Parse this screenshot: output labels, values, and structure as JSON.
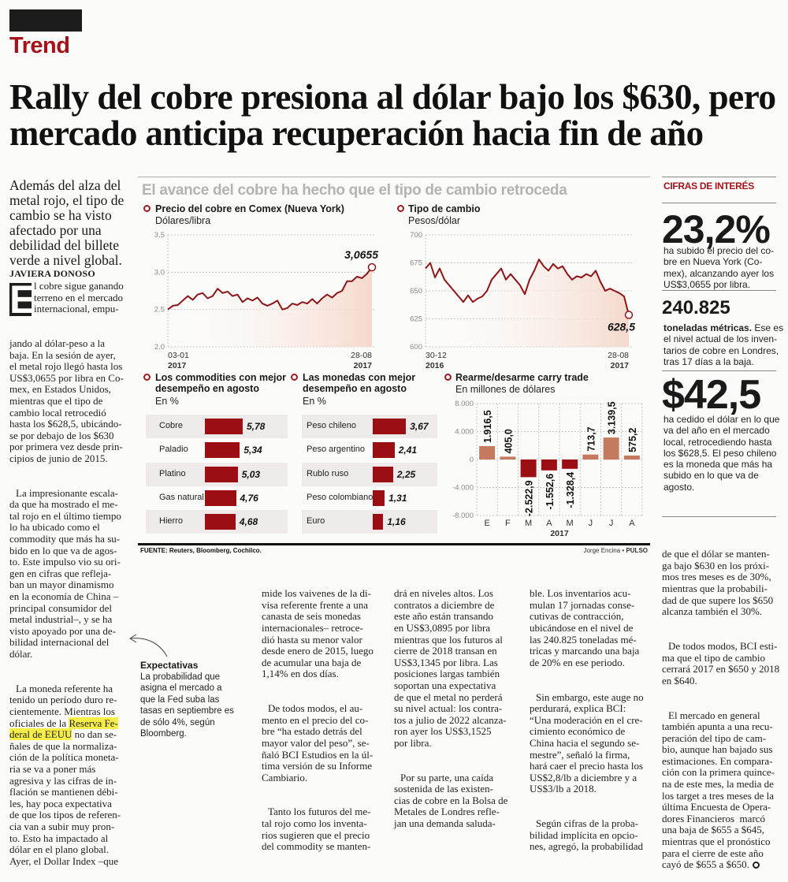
{
  "section": "Trend",
  "headline": [
    "Rally del cobre presiona al dólar bajo los $630, pero",
    "mercado anticipa recuperación hacia fin de año"
  ],
  "deck": "Además del alza del\nmetal rojo, el tipo de\ncambio se ha visto\nafectado por una\ndebilidad del billete\nverde a nivel global.",
  "byline": "JAVIERA DONOSO",
  "article": {
    "dropcap": "E",
    "dropcap_lines": "l cobre sigue ganando\nterreno en el mercado\ninternacional, empu-",
    "p1_rest": "jando al dólar-peso a la\nbaja. En la sesión de ayer,\nel metal rojo llegó hasta los\nUS$3,0655 por libra en Co-\nmex, en Estados Unidos,\nmientras que el tipo de\ncambio local retrocedió\nhasta los $628,5, ubicándo-\nse por debajo de los $630\npor primera vez desde prin-\ncipios de junio de 2015.",
    "p2": "La impresionante escala-\nda que ha mostrado el me-\ntal rojo en el último tiempo\nlo ha ubicado como el\ncommodity que más ha su-\nbido en lo que va de agos-\nto. Este impulso vio su ori-\ngen en cifras que refleja-\nban un mayor dinamismo\nen la economía de China –\nprincipal consumidor del\nmetal industrial–, y se ha\nvisto apoyado por una de-\nbilidad internacional del\ndólar.",
    "p3_a": "La moneda referente ha\ntenido un período duro re-\ncientemente. Mientras los\noficiales de la ",
    "p3_highlight": "Reserva Fe-\nderal de EEUU",
    "p3_b": " no dan se-\nñales de que la normaliza-\nción de la política moneta-\nria se va a poner más\nagresiva y las cifras de in-\nflación se mantienen débi-\nles, hay poca expectativa\nde que los tipos de referen-\ncia van a subir muy pron-\nto. Esto ha impactado al\ndólar en el plano global.\nAyer, el Dollar Index –que",
    "col2_p1": "mide los vaivenes de la di-\nvisa referente frente a una\ncanasta de seis monedas\ninternacionales– retroce-\ndió hasta su menor valor\ndesde enero de 2015, luego\nde acumular una baja de\n1,14% en dos días.",
    "col2_p2": "De todos modos, el au-\nmento en el precio del co-\nbre “ha estado detrás del\nmayor valor del peso”, se-\nñaló BCI Estudios en la úl-\ntima versión de su Informe\nCambiario.",
    "col2_p3": "Tanto los futuros del me-\ntal rojo como los inventa-\nrios sugieren que el precio\ndel commodity se manten-",
    "col3_p1": "drá en niveles altos. Los\ncontratos a diciembre de\neste año están transando\nen US$3,0895 por libra\nmientras que los futuros al\ncierre de 2018 transan en\nUS$3,1345 por libra. Las\nposiciones largas también\nsoportan una expectativa\nde que el metal no perderá\nsu nivel actual: los contra-\ntos a julio de 2022 alcanza-\nron ayer los US$3,1525\npor libra.",
    "col3_p2": "Por su parte, una caída\nsostenida de las existen-\ncias de cobre en la Bolsa de\nMetales de Londres refle-\njan una demanda saluda-",
    "col4_p1": "ble. Los inventarios acu-\nmulan 17 jornadas conse-\ncutivas de contracción,\nubicándose en el nivel de\nlas 240.825 toneladas mé-\ntricas y marcando una baja\nde 20% en ese periodo.",
    "col4_p2": "Sin embargo, este auge no\nperdurará, explica BCI:\n“Una moderación en el cre-\ncimiento económico de\nChina hacia el segundo se-\nmestre”, señaló la firma,\nhará caer el precio hasta los\nUS$2,8/lb a diciembre y a\nUS$3/lb a 2018.",
    "col4_p3": "Según cifras de la proba-\nbilidad implícita en opcio-\nnes, agregó, la probabilidad",
    "col5_p1": "de que el dólar se manten-\nga bajo $630 en los próxi-\nmos tres meses es de 30%,\nmientras que la probabili-\ndad de que supere los $650\nalcanza también el 30%.",
    "col5_p2": "De todos modos, BCI esti-\nma que el tipo de cambio\ncerrará 2017 en $650 y 2018\nen $640.",
    "col5_p3": "El mercado en general\ntambién apunta a una recu-\nperación del tipo de cam-\nbio, aunque han bajado sus\nestimaciones. En compara-\nción con la primera quince-\nna de este mes, la media de\nlos target a tres meses de la\núltima Encuesta de Opera-\ndores Financieros  marcó\nuna baja de $655 a $645,\nmientras que el pronóstico\npara el cierre de este año\ncayó de $655 a $650."
  },
  "annotation": {
    "title": "Expectativas",
    "text": "La probabilidad que\nasigna el mercado a\nque la Fed suba las\ntasas en septiembre es\nde sólo 4%, según\nBloomberg."
  },
  "sidebar": {
    "title": "CIFRAS DE INTERÉS",
    "stats": [
      {
        "value": "23,2%",
        "text": "ha subido el precio del co-\nbre en Nueva York (Co-\nmex), alcanzando ayer los\nUS$3,0655 por libra."
      },
      {
        "value": "240.825",
        "bold_text": "toneladas métricas.",
        "text": " Ese es\nel nivel actual de los inven-\ntarios de cobre en Londres,\ntras 17 días a la baja."
      },
      {
        "value": "$42,5",
        "text": "ha cedido el dólar en lo que\nva del año en el mercado\nlocal, retrocediendo hasta\nlos $628,5. El peso chileno\nes la moneda que más ha\nsubido en lo que va de\nagosto."
      }
    ]
  },
  "graphic": {
    "title": "El avance del cobre ha hecho que el tipo de cambio retroceda",
    "source": "FUENTE: Reuters, Bloomberg, Cochilco.",
    "credit_author": "Jorge Encina",
    "credit_sep": " • ",
    "credit_outlet": "PULSO",
    "accent": "#9b0f14",
    "positive_color": "#c47a5f"
  },
  "chart_data": [
    {
      "type": "line",
      "title": "Precio del cobre en Comex (Nueva York)",
      "ylabel": "Dólares/libra",
      "ylim": [
        2.0,
        3.5
      ],
      "yticks": [
        "3.5",
        "3.0",
        "2.5",
        "2.0"
      ],
      "x_start": {
        "date": "03-01",
        "year": "2017"
      },
      "x_end": {
        "date": "28-08",
        "year": "2017"
      },
      "last_label": "3,0655",
      "values": [
        2.5,
        2.55,
        2.56,
        2.62,
        2.68,
        2.63,
        2.7,
        2.72,
        2.65,
        2.68,
        2.78,
        2.72,
        2.74,
        2.68,
        2.7,
        2.6,
        2.65,
        2.62,
        2.66,
        2.58,
        2.55,
        2.58,
        2.62,
        2.5,
        2.52,
        2.58,
        2.56,
        2.6,
        2.58,
        2.64,
        2.58,
        2.65,
        2.7,
        2.66,
        2.72,
        2.75,
        2.88,
        2.88,
        2.94,
        2.92,
        2.98,
        3.0655
      ]
    },
    {
      "type": "line",
      "title": "Tipo de cambio",
      "ylabel": "Pesos/dólar",
      "ylim": [
        600,
        700
      ],
      "yticks": [
        "700",
        "675",
        "650",
        "625",
        "600"
      ],
      "x_start": {
        "date": "30-12",
        "year": "2016"
      },
      "x_end": {
        "date": "28-08",
        "year": "2017"
      },
      "last_label": "628,5",
      "values": [
        670,
        675,
        662,
        670,
        660,
        655,
        650,
        645,
        640,
        646,
        640,
        643,
        645,
        650,
        660,
        665,
        670,
        660,
        665,
        660,
        655,
        647,
        660,
        668,
        678,
        672,
        668,
        674,
        670,
        672,
        665,
        660,
        663,
        662,
        665,
        663,
        668,
        658,
        650,
        652,
        650,
        648,
        645,
        628.5
      ]
    },
    {
      "type": "bar",
      "title": "Los commodities con mejor\ndesempeño en agosto",
      "ylabel": "En %",
      "categories": [
        "Cobre",
        "Paladio",
        "Platino",
        "Gas natural",
        "Hierro"
      ],
      "values": [
        5.78,
        5.34,
        5.03,
        4.76,
        4.68
      ],
      "labels": [
        "5,78",
        "5,34",
        "5,03",
        "4,76",
        "4,68"
      ]
    },
    {
      "type": "bar",
      "title": "Las monedas con mejor\ndesempeño en agosto",
      "ylabel": "En %",
      "categories": [
        "Peso chileno",
        "Peso argentino",
        "Rublo ruso",
        "Peso colombiano",
        "Euro"
      ],
      "values": [
        3.67,
        2.41,
        2.25,
        1.31,
        1.16
      ],
      "labels": [
        "3,67",
        "2,41",
        "2,25",
        "1,31",
        "1,16"
      ]
    },
    {
      "type": "bar",
      "title": "Rearme/desarme carry trade",
      "ylabel": "En millones de dólares",
      "xlabel": "2017",
      "ylim": [
        -8000,
        8000
      ],
      "yticks": [
        "8.000",
        "4.000",
        "0",
        "-4.000",
        "-8.000"
      ],
      "categories": [
        "E",
        "F",
        "M",
        "A",
        "M",
        "J",
        "J",
        "A"
      ],
      "values": [
        1916.5,
        405.0,
        -2522.9,
        -1552.6,
        -1328.4,
        713.7,
        3139.5,
        575.2
      ],
      "labels": [
        "1.916,5",
        "405,0",
        "-2.522,9",
        "-1.552,6",
        "-1.328,4",
        "713,7",
        "3.139,5",
        "575,2"
      ]
    }
  ]
}
